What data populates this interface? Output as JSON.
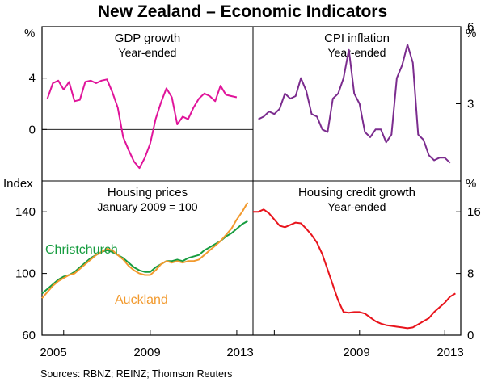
{
  "title": "New Zealand – Economic Indicators",
  "source": "Sources: RBNZ; REINZ; Thomson Reuters",
  "x_tick_labels": [
    "2005",
    "2009",
    "2013"
  ],
  "colors": {
    "gdp": "#e0149a",
    "cpi": "#7b2c8e",
    "christchurch": "#169c3f",
    "auckland": "#f29a2e",
    "credit": "#e8141c",
    "frame": "#000000",
    "zero_line": "#000000"
  },
  "chart_data": [
    {
      "id": "gdp",
      "type": "line",
      "title": "GDP growth",
      "subtitle": "Year-ended",
      "ylabel_left": "%",
      "ylim": [
        -4,
        8
      ],
      "yticks_left": [
        {
          "value": 4,
          "label": "4"
        },
        {
          "value": 0,
          "label": "0"
        }
      ],
      "xlim": [
        2004.0,
        2013.75
      ],
      "series": [
        {
          "name": "GDP growth",
          "color": "#e0149a",
          "x": [
            2004.25,
            2004.5,
            2004.75,
            2005.0,
            2005.25,
            2005.5,
            2005.75,
            2006.0,
            2006.25,
            2006.5,
            2006.75,
            2007.0,
            2007.25,
            2007.5,
            2007.75,
            2008.0,
            2008.25,
            2008.5,
            2008.75,
            2009.0,
            2009.25,
            2009.5,
            2009.75,
            2010.0,
            2010.25,
            2010.5,
            2010.75,
            2011.0,
            2011.25,
            2011.5,
            2011.75,
            2012.0,
            2012.25,
            2012.5,
            2012.75,
            2013.0
          ],
          "values": [
            2.4,
            3.6,
            3.8,
            3.1,
            3.7,
            2.2,
            2.3,
            3.7,
            3.8,
            3.6,
            3.8,
            3.9,
            2.9,
            1.7,
            -0.6,
            -1.6,
            -2.5,
            -3.0,
            -2.2,
            -1.1,
            0.8,
            2.1,
            3.2,
            2.5,
            0.4,
            1.0,
            0.8,
            1.7,
            2.4,
            2.8,
            2.6,
            2.2,
            3.4,
            2.7,
            2.6,
            2.5
          ]
        }
      ]
    },
    {
      "id": "cpi",
      "type": "line",
      "title": "CPI inflation",
      "subtitle": "Year-ended",
      "ylabel_right": "%",
      "ylim": [
        0,
        6
      ],
      "yticks_right": [
        {
          "value": 6,
          "label": "6"
        },
        {
          "value": 3,
          "label": "3"
        }
      ],
      "xlim": [
        2004.0,
        2013.75
      ],
      "series": [
        {
          "name": "CPI inflation",
          "color": "#7b2c8e",
          "x": [
            2004.25,
            2004.5,
            2004.75,
            2005.0,
            2005.25,
            2005.5,
            2005.75,
            2006.0,
            2006.25,
            2006.5,
            2006.75,
            2007.0,
            2007.25,
            2007.5,
            2007.75,
            2008.0,
            2008.25,
            2008.5,
            2008.75,
            2009.0,
            2009.25,
            2009.5,
            2009.75,
            2010.0,
            2010.25,
            2010.5,
            2010.75,
            2011.0,
            2011.25,
            2011.5,
            2011.75,
            2012.0,
            2012.25,
            2012.5,
            2012.75,
            2013.0,
            2013.25
          ],
          "values": [
            2.4,
            2.5,
            2.7,
            2.6,
            2.8,
            3.4,
            3.2,
            3.3,
            4.0,
            3.5,
            2.6,
            2.5,
            2.0,
            1.9,
            3.2,
            3.4,
            4.0,
            5.1,
            3.4,
            3.0,
            1.9,
            1.7,
            2.0,
            2.0,
            1.5,
            1.8,
            4.0,
            4.5,
            5.3,
            4.6,
            1.8,
            1.6,
            1.0,
            0.8,
            0.9,
            0.9,
            0.7
          ]
        }
      ]
    },
    {
      "id": "housing-prices",
      "type": "line",
      "title": "Housing prices",
      "subtitle": "January 2009 = 100",
      "ylabel_left": "Index",
      "ylim": [
        60,
        160
      ],
      "yticks_left": [
        {
          "value": 140,
          "label": "140"
        },
        {
          "value": 100,
          "label": "100"
        },
        {
          "value": 60,
          "label": "60"
        }
      ],
      "xlim": [
        2004.0,
        2013.75
      ],
      "series": [
        {
          "name": "Christchurch",
          "color": "#169c3f",
          "x": [
            2004.0,
            2004.25,
            2004.5,
            2004.75,
            2005.0,
            2005.25,
            2005.5,
            2005.75,
            2006.0,
            2006.25,
            2006.5,
            2006.75,
            2007.0,
            2007.25,
            2007.5,
            2007.75,
            2008.0,
            2008.25,
            2008.5,
            2008.75,
            2009.0,
            2009.25,
            2009.5,
            2009.75,
            2010.0,
            2010.25,
            2010.5,
            2010.75,
            2011.0,
            2011.25,
            2011.5,
            2011.75,
            2012.0,
            2012.25,
            2012.5,
            2012.75,
            2013.0,
            2013.25,
            2013.5
          ],
          "values": [
            87,
            90,
            93,
            96,
            98,
            99,
            101,
            104,
            107,
            110,
            112,
            114,
            115,
            114,
            112,
            110,
            107,
            104,
            102,
            101,
            101,
            104,
            106,
            108,
            108,
            109,
            108,
            110,
            111,
            112,
            115,
            117,
            119,
            121,
            124,
            126,
            129,
            132,
            134
          ]
        },
        {
          "name": "Auckland",
          "color": "#f29a2e",
          "x": [
            2004.0,
            2004.25,
            2004.5,
            2004.75,
            2005.0,
            2005.25,
            2005.5,
            2005.75,
            2006.0,
            2006.25,
            2006.5,
            2006.75,
            2007.0,
            2007.25,
            2007.5,
            2007.75,
            2008.0,
            2008.25,
            2008.5,
            2008.75,
            2009.0,
            2009.25,
            2009.5,
            2009.75,
            2010.0,
            2010.25,
            2010.5,
            2010.75,
            2011.0,
            2011.25,
            2011.5,
            2011.75,
            2012.0,
            2012.25,
            2012.5,
            2012.75,
            2013.0,
            2013.25,
            2013.5
          ],
          "values": [
            84,
            88,
            92,
            95,
            97,
            99,
            100,
            103,
            106,
            109,
            112,
            114,
            116,
            115,
            112,
            109,
            105,
            102,
            100,
            99,
            99,
            102,
            106,
            108,
            107,
            108,
            107,
            108,
            108,
            109,
            112,
            115,
            118,
            121,
            125,
            129,
            135,
            140,
            146
          ]
        }
      ]
    },
    {
      "id": "housing-credit",
      "type": "line",
      "title": "Housing credit growth",
      "subtitle": "Year-ended",
      "ylabel_right": "%",
      "ylim": [
        0,
        20
      ],
      "yticks_right": [
        {
          "value": 16,
          "label": "16"
        },
        {
          "value": 8,
          "label": "8"
        },
        {
          "value": 0,
          "label": "0"
        }
      ],
      "xlim": [
        2004.0,
        2013.75
      ],
      "series": [
        {
          "name": "Housing credit growth",
          "color": "#e8141c",
          "x": [
            2004.0,
            2004.25,
            2004.5,
            2004.75,
            2005.0,
            2005.25,
            2005.5,
            2005.75,
            2006.0,
            2006.25,
            2006.5,
            2006.75,
            2007.0,
            2007.25,
            2007.5,
            2007.75,
            2008.0,
            2008.25,
            2008.5,
            2008.75,
            2009.0,
            2009.25,
            2009.5,
            2009.75,
            2010.0,
            2010.25,
            2010.5,
            2010.75,
            2011.0,
            2011.25,
            2011.5,
            2011.75,
            2012.0,
            2012.25,
            2012.5,
            2012.75,
            2013.0,
            2013.25,
            2013.5
          ],
          "values": [
            16.0,
            16.0,
            16.3,
            15.8,
            15.0,
            14.2,
            14.0,
            14.3,
            14.6,
            14.5,
            13.8,
            13.0,
            12.0,
            10.5,
            8.5,
            6.5,
            4.5,
            3.0,
            2.9,
            3.0,
            3.0,
            2.8,
            2.3,
            1.8,
            1.5,
            1.3,
            1.2,
            1.1,
            1.0,
            0.9,
            1.0,
            1.4,
            1.8,
            2.2,
            3.0,
            3.6,
            4.2,
            5.0,
            5.4
          ]
        }
      ]
    }
  ]
}
